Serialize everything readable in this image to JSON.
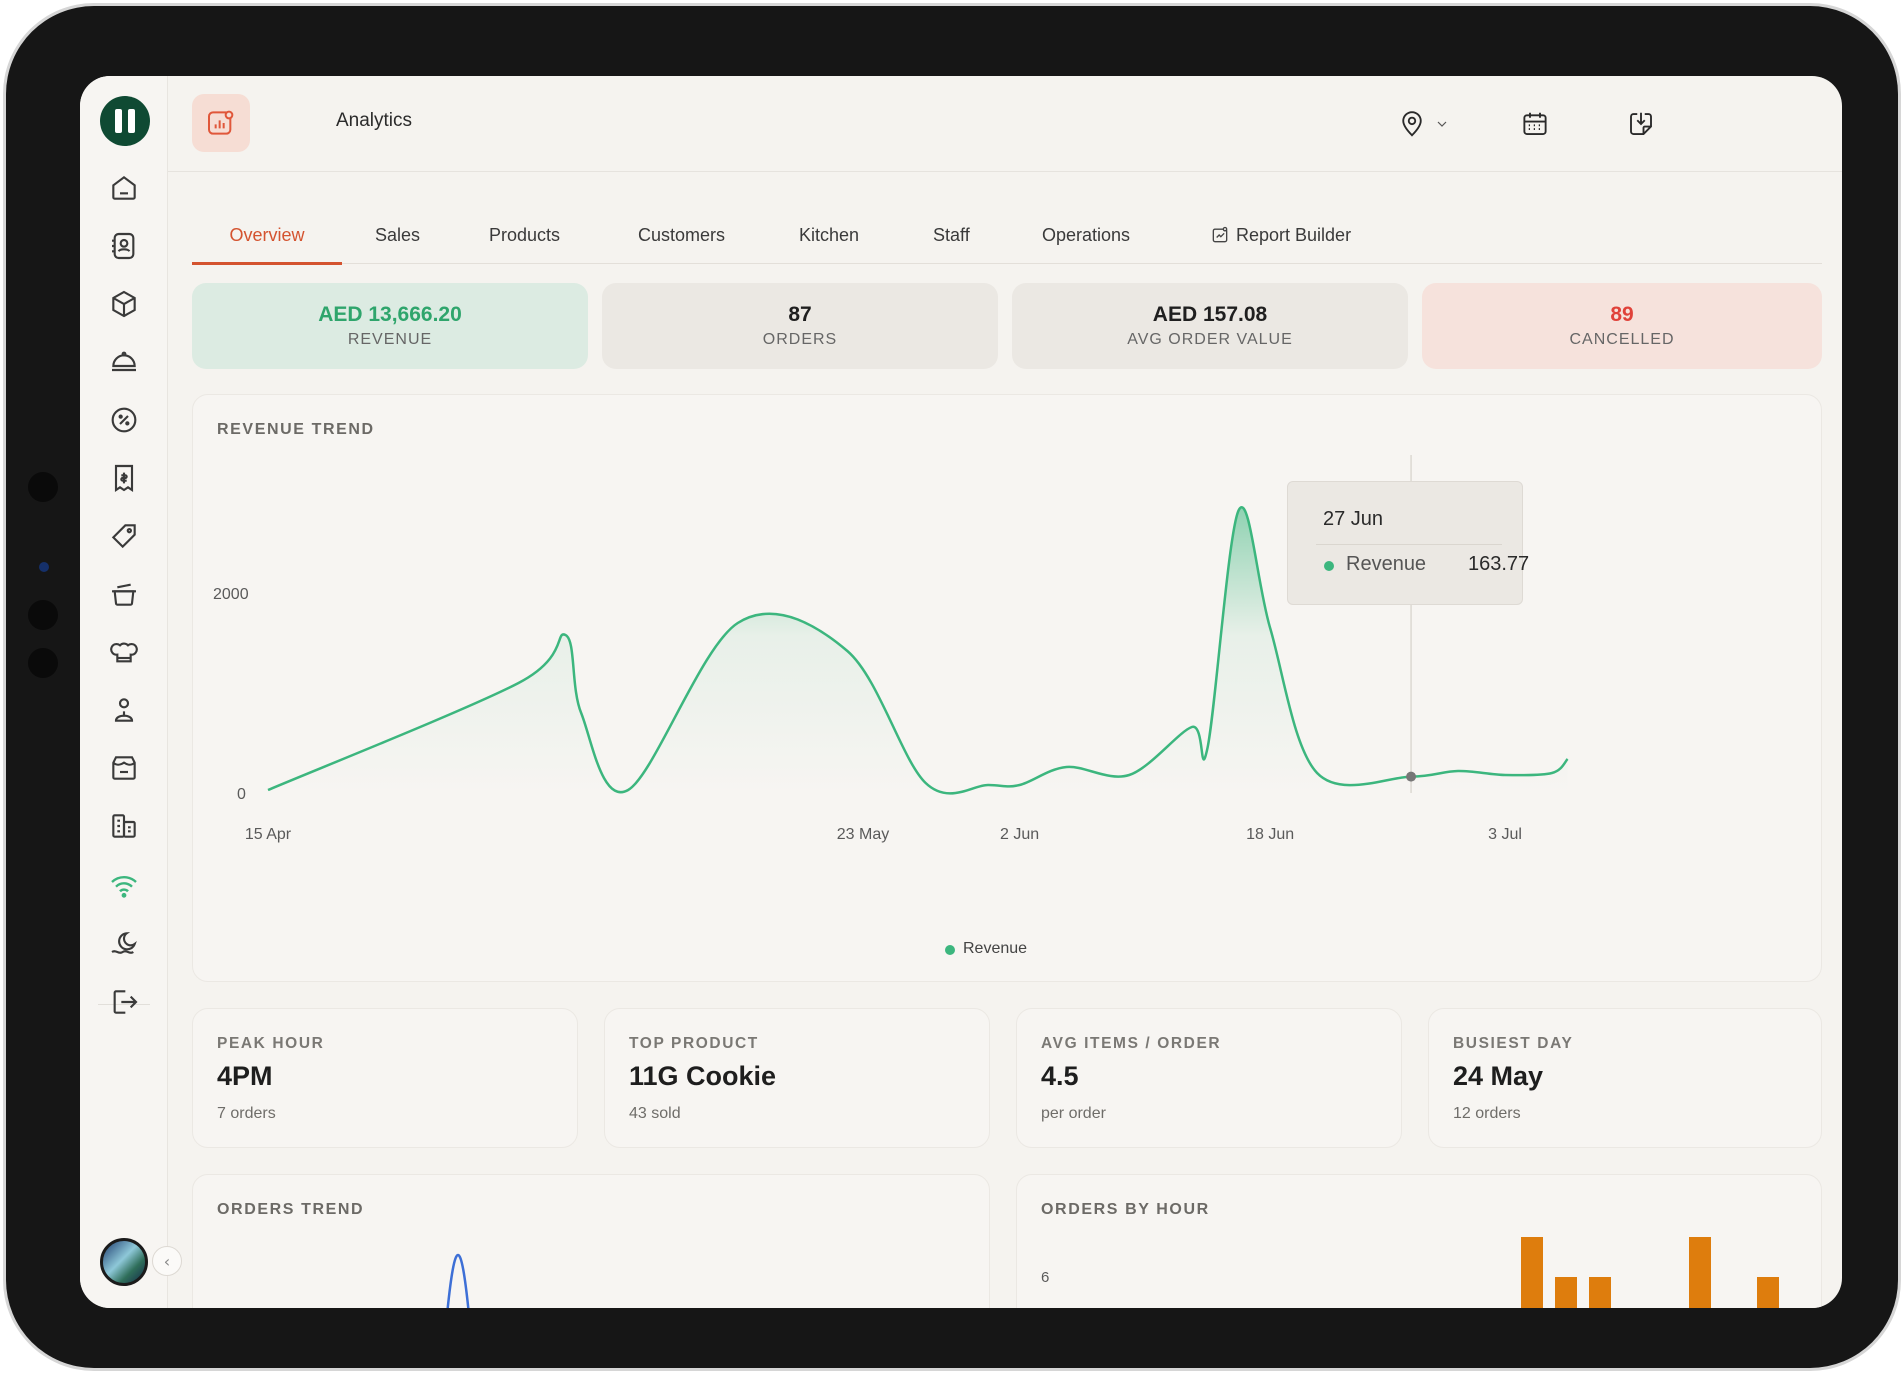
{
  "app": {
    "title": "Analytics"
  },
  "tabs": [
    {
      "label": "Overview",
      "active": true
    },
    {
      "label": "Sales"
    },
    {
      "label": "Products"
    },
    {
      "label": "Customers"
    },
    {
      "label": "Kitchen"
    },
    {
      "label": "Staff"
    },
    {
      "label": "Operations"
    },
    {
      "label": "Report Builder",
      "icon": "report-icon"
    }
  ],
  "kpis": [
    {
      "value": "AED 13,666.20",
      "label": "REVENUE",
      "bg": "#dcebe2",
      "color": "#2fa56c"
    },
    {
      "value": "87",
      "label": "ORDERS",
      "bg": "#ebe8e3",
      "color": "#1f1f1f"
    },
    {
      "value": "AED 157.08",
      "label": "AVG ORDER VALUE",
      "bg": "#ebe8e3",
      "color": "#1f1f1f"
    },
    {
      "value": "89",
      "label": "CANCELLED",
      "bg": "#f6e2dc",
      "color": "#e0423a"
    }
  ],
  "revenue_trend": {
    "title": "REVENUE TREND",
    "legend": "Revenue",
    "tooltip": {
      "date": "27 Jun",
      "series": "Revenue",
      "value": "163.77"
    }
  },
  "stats": [
    {
      "label": "PEAK HOUR",
      "value": "4PM",
      "sub": "7 orders"
    },
    {
      "label": "TOP PRODUCT",
      "value": "11G Cookie",
      "sub": "43 sold"
    },
    {
      "label": "AVG ITEMS / ORDER",
      "value": "4.5",
      "sub": "per order"
    },
    {
      "label": "BUSIEST DAY",
      "value": "24 May",
      "sub": "12 orders"
    }
  ],
  "orders_trend": {
    "title": "ORDERS TREND"
  },
  "orders_by_hour": {
    "title": "ORDERS BY HOUR",
    "y_tick": "6"
  },
  "colors": {
    "accent": "#d4532f",
    "green": "#3cb67e",
    "orange": "#de7d0d",
    "blue": "#3d6fd6"
  },
  "chart_data": {
    "type": "area",
    "title": "REVENUE TREND",
    "series": [
      {
        "name": "Revenue",
        "points": [
          [
            "15 Apr",
            30
          ],
          [
            "1 May",
            1100
          ],
          [
            "4 May",
            1580
          ],
          [
            "5 May",
            800
          ],
          [
            "8 May",
            30
          ],
          [
            "15 May",
            1700
          ],
          [
            "22 May",
            1420
          ],
          [
            "27 May",
            100
          ],
          [
            "31 May",
            80
          ],
          [
            "2 Jun",
            80
          ],
          [
            "5 Jun",
            260
          ],
          [
            "9 Jun",
            180
          ],
          [
            "13 Jun",
            660
          ],
          [
            "14 Jun",
            450
          ],
          [
            "16 Jun",
            2830
          ],
          [
            "18 Jun",
            1650
          ],
          [
            "21 Jun",
            200
          ],
          [
            "27 Jun",
            163.77
          ],
          [
            "30 Jun",
            220
          ],
          [
            "3 Jul",
            180
          ],
          [
            "6 Jul",
            200
          ],
          [
            "7 Jul",
            340
          ]
        ]
      }
    ],
    "x_ticks": [
      "15 Apr",
      "23 May",
      "2 Jun",
      "18 Jun",
      "3 Jul"
    ],
    "y_ticks": [
      "0",
      "2000"
    ],
    "ylim": [
      0,
      3000
    ],
    "grid": false,
    "legend_position": "bottom"
  }
}
